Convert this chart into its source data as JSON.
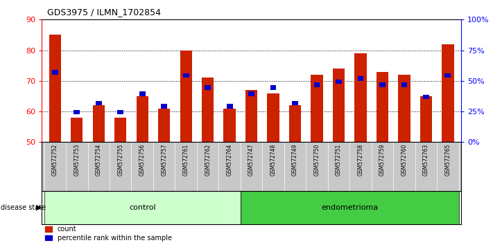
{
  "title": "GDS3975 / ILMN_1702854",
  "samples": [
    "GSM572752",
    "GSM572753",
    "GSM572754",
    "GSM572755",
    "GSM572756",
    "GSM572757",
    "GSM572761",
    "GSM572762",
    "GSM572764",
    "GSM572747",
    "GSM572748",
    "GSM572749",
    "GSM572750",
    "GSM572751",
    "GSM572758",
    "GSM572759",
    "GSM572760",
    "GSM572763",
    "GSM572765"
  ],
  "red_values": [
    85,
    58,
    62,
    58,
    65,
    61,
    80,
    71,
    61,
    67,
    66,
    62,
    72,
    74,
    79,
    73,
    72,
    65,
    82
  ],
  "blue_values": [
    72,
    59,
    62,
    59,
    65,
    61,
    71,
    67,
    61,
    65,
    67,
    62,
    68,
    69,
    70,
    68,
    68,
    64,
    71
  ],
  "ylim_left": [
    50,
    90
  ],
  "ylim_right": [
    0,
    100
  ],
  "yticks_left": [
    50,
    60,
    70,
    80,
    90
  ],
  "yticks_right": [
    0,
    25,
    50,
    75,
    100
  ],
  "ytick_labels_right": [
    "0%",
    "25%",
    "50%",
    "75%",
    "100%"
  ],
  "groups": [
    {
      "label": "control",
      "start": 0,
      "end": 9,
      "color": "#ccffcc"
    },
    {
      "label": "endometrioma",
      "start": 9,
      "end": 19,
      "color": "#44cc44"
    }
  ],
  "bar_color_red": "#cc2200",
  "bar_color_blue": "#0000cc",
  "bar_width": 0.55,
  "blue_bar_width": 0.28,
  "blue_bar_height": 1.5
}
